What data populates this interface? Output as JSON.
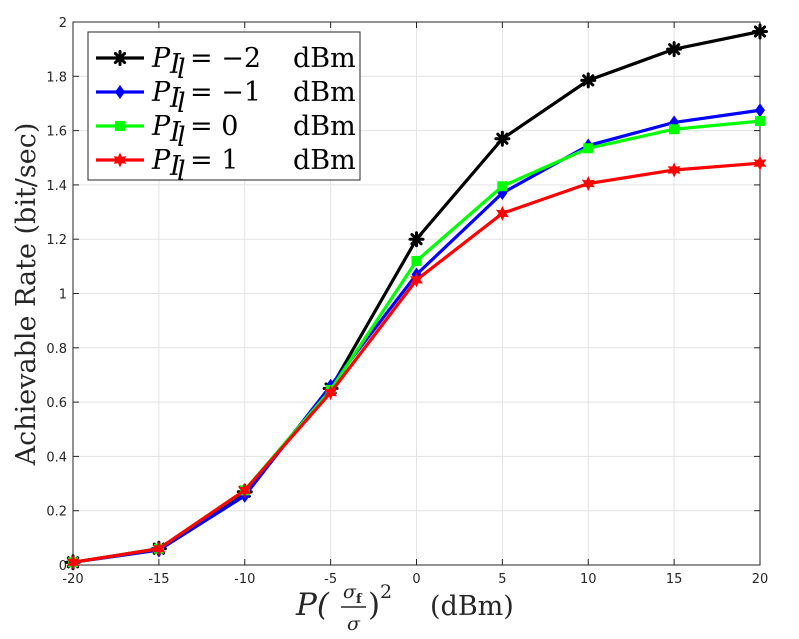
{
  "chart_data": {
    "type": "line",
    "title": "",
    "xlabel": {
      "prefix": "P(",
      "frac_num": "σ",
      "frac_num_sub": "f",
      "frac_den": "σ",
      "suffix": ")",
      "power": "2",
      "unit": "(dBm)"
    },
    "ylabel": "Achievable Rate (bit/sec)",
    "x": [
      -20,
      -15,
      -10,
      -5,
      0,
      5,
      10,
      15,
      20
    ],
    "xlim": [
      -20,
      20
    ],
    "ylim": [
      0,
      2
    ],
    "xticks": [
      -20,
      -15,
      -10,
      -5,
      0,
      5,
      10,
      15,
      20
    ],
    "xtick_labels": [
      "-20",
      "-15",
      "-10",
      "-5",
      "0",
      "5",
      "10",
      "15",
      "20"
    ],
    "yticks": [
      0,
      0.2,
      0.4,
      0.6,
      0.8,
      1,
      1.2,
      1.4,
      1.6,
      1.8,
      2
    ],
    "ytick_labels": [
      "0",
      "0.2",
      "0.4",
      "0.6",
      "0.8",
      "1",
      "1.2",
      "1.4",
      "1.6",
      "1.8",
      "2"
    ],
    "grid": true,
    "legend_position": "top-left",
    "series": [
      {
        "name": "P_Il = −2 dBm",
        "symbol": "P",
        "sub": "I",
        "subsub": "l",
        "eq": "= −2",
        "unit": "dBm",
        "color": "#000000",
        "marker": "asterisk",
        "values": [
          0.01,
          0.06,
          0.27,
          0.65,
          1.2,
          1.57,
          1.785,
          1.9,
          1.965
        ]
      },
      {
        "name": "P_Il = −1 dBm",
        "symbol": "P",
        "sub": "I",
        "subsub": "l",
        "eq": "= −1",
        "unit": "dBm",
        "color": "#0000FF",
        "marker": "diamond",
        "values": [
          0.01,
          0.055,
          0.255,
          0.66,
          1.07,
          1.37,
          1.545,
          1.63,
          1.675
        ]
      },
      {
        "name": "P_Il = 0 dBm",
        "symbol": "P",
        "sub": "I",
        "subsub": "l",
        "eq": "= 0",
        "unit": "dBm",
        "color": "#00FF00",
        "marker": "square",
        "values": [
          0.01,
          0.06,
          0.275,
          0.645,
          1.12,
          1.395,
          1.535,
          1.605,
          1.635
        ]
      },
      {
        "name": "P_Il = 1 dBm",
        "symbol": "P",
        "sub": "I",
        "subsub": "l",
        "eq": "= 1",
        "unit": "dBm",
        "color": "#FF0000",
        "marker": "hexagram",
        "values": [
          0.01,
          0.06,
          0.275,
          0.635,
          1.05,
          1.295,
          1.405,
          1.455,
          1.48
        ]
      }
    ]
  }
}
